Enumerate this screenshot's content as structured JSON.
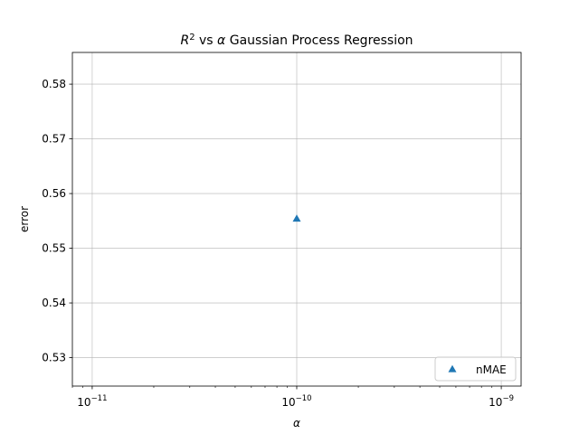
{
  "chart_data": {
    "type": "scatter",
    "title_parts": {
      "r": "R",
      "sup": "2",
      "mid": " vs ",
      "alpha": "α",
      "rest": " Gaussian Process Regression"
    },
    "xlabel": "α",
    "ylabel": "error",
    "x_scale": "log",
    "xlim": [
      8e-12,
      1.25e-09
    ],
    "ylim": [
      0.5248,
      0.5858
    ],
    "x_ticks": [
      {
        "value": 1e-11,
        "base": "10",
        "exp": "−11"
      },
      {
        "value": 1e-10,
        "base": "10",
        "exp": "−10"
      },
      {
        "value": 1e-09,
        "base": "10",
        "exp": "−9"
      }
    ],
    "y_ticks": [
      {
        "value": 0.53,
        "label": "0.53"
      },
      {
        "value": 0.54,
        "label": "0.54"
      },
      {
        "value": 0.55,
        "label": "0.55"
      },
      {
        "value": 0.56,
        "label": "0.56"
      },
      {
        "value": 0.57,
        "label": "0.57"
      },
      {
        "value": 0.58,
        "label": "0.58"
      }
    ],
    "grid": true,
    "legend_position": "bottom-right",
    "series": [
      {
        "name": "nMAE",
        "marker": "triangle",
        "color": "#1f77b4",
        "points": [
          {
            "x": 1e-10,
            "y": 0.5553
          }
        ]
      }
    ]
  }
}
